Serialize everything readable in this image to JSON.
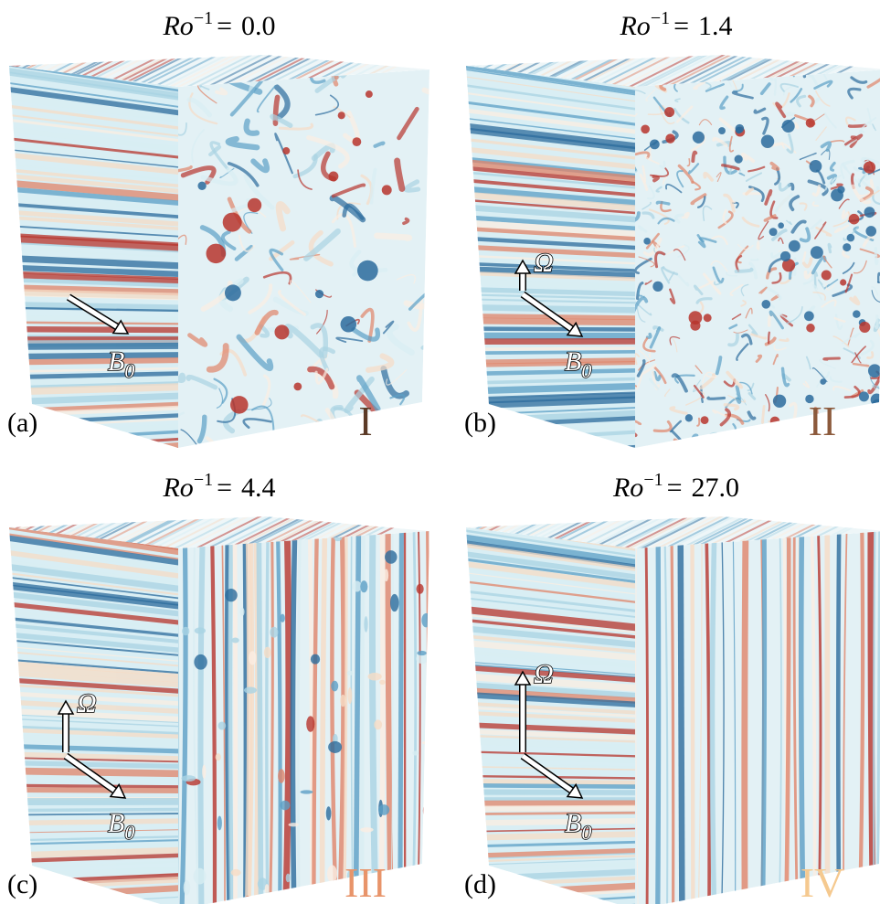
{
  "panels": [
    {
      "title": {
        "symbol": "Ro",
        "superscript": "−1",
        "equals": "=",
        "value": "0.0"
      },
      "label": "(a)",
      "numeral": "I",
      "numeral_color": "#5b3a26",
      "field": "b",
      "field_subscript": "0",
      "pattern": "vortices"
    },
    {
      "title": {
        "symbol": "Ro",
        "superscript": "−1",
        "equals": "=",
        "value": "1.4"
      },
      "label": "(b)",
      "numeral": "II",
      "numeral_color": "#8c5a3c",
      "field": "B",
      "field_subscript": "0",
      "rotation": "Ω",
      "pattern": "turbulent"
    },
    {
      "title": {
        "symbol": "Ro",
        "superscript": "−1",
        "equals": "=",
        "value": "4.4"
      },
      "label": "(c)",
      "numeral": "III",
      "numeral_color": "#e8946a",
      "field": "B",
      "field_subscript": "0",
      "rotation": "Ω",
      "pattern": "columns"
    },
    {
      "title": {
        "symbol": "Ro",
        "superscript": "−1",
        "equals": "=",
        "value": "27.0"
      },
      "label": "(d)",
      "numeral": "IV",
      "numeral_color": "#f5c98f",
      "field": "B",
      "field_subscript": "0",
      "rotation": "Ω",
      "pattern": "sheets"
    }
  ]
}
